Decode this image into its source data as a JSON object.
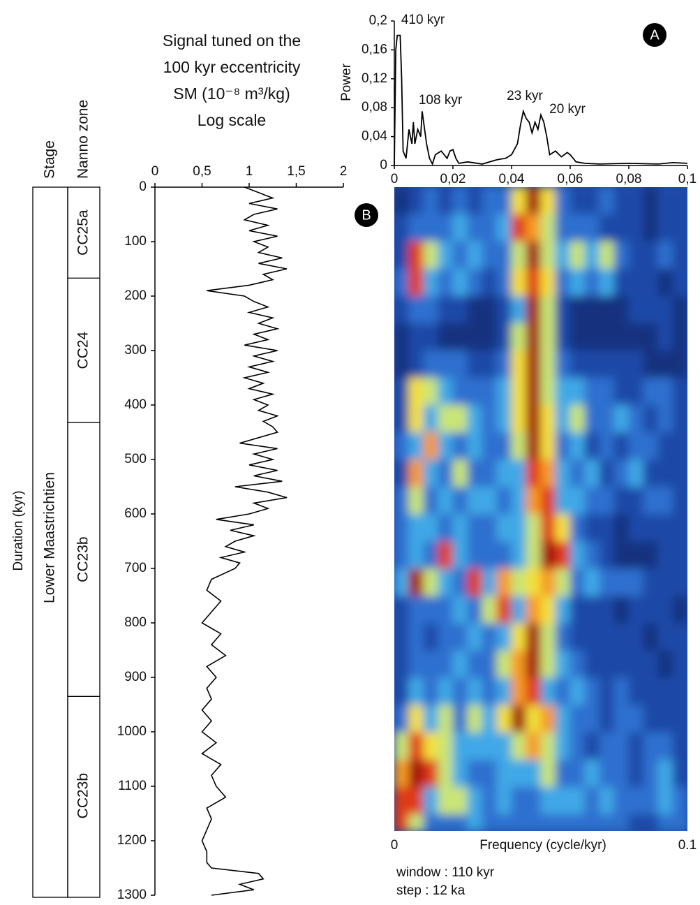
{
  "stratigraphy": {
    "stage_header": "Stage",
    "zone_header": "Nanno zone",
    "stage": "Lower Maastrichtien",
    "zones": [
      {
        "name": "CC25a",
        "top": 0,
        "base": 167
      },
      {
        "name": "CC24",
        "top": 167,
        "base": 432
      },
      {
        "name": "CC23b",
        "top": 432,
        "base": 935
      },
      {
        "name": "CC23b",
        "top": 935,
        "base": 1300
      }
    ]
  },
  "chart_data": [
    {
      "type": "profile",
      "title_lines": [
        "Signal tuned on the",
        "100 kyr eccentricity",
        "SM (10⁻⁸ m³/kg)",
        "Log scale"
      ],
      "y_label": "Duration (kyr)",
      "color": "#000000",
      "xlim": [
        0,
        2
      ],
      "xticks": [
        0,
        {
          "value": 0.5,
          "label": "0,5"
        },
        1,
        {
          "value": 1.5,
          "label": "1,5"
        },
        2
      ],
      "ylim": [
        0,
        1300
      ],
      "yticks": [
        0,
        100,
        200,
        300,
        400,
        500,
        600,
        700,
        800,
        900,
        1000,
        1100,
        1200,
        1300
      ],
      "y": [
        0,
        10,
        20,
        30,
        40,
        50,
        60,
        70,
        80,
        90,
        100,
        110,
        120,
        130,
        140,
        150,
        160,
        170,
        180,
        190,
        200,
        210,
        220,
        230,
        240,
        250,
        260,
        270,
        280,
        290,
        300,
        310,
        320,
        330,
        340,
        350,
        360,
        370,
        380,
        390,
        400,
        410,
        420,
        430,
        440,
        450,
        460,
        470,
        480,
        490,
        500,
        510,
        520,
        530,
        540,
        550,
        560,
        570,
        580,
        590,
        600,
        610,
        620,
        630,
        640,
        650,
        660,
        670,
        680,
        690,
        700,
        720,
        740,
        760,
        780,
        800,
        820,
        840,
        860,
        880,
        900,
        920,
        940,
        960,
        980,
        1000,
        1020,
        1040,
        1060,
        1080,
        1100,
        1120,
        1140,
        1160,
        1180,
        1200,
        1220,
        1240,
        1250,
        1260,
        1270,
        1280,
        1290,
        1300
      ],
      "values": [
        0.95,
        1.1,
        1.25,
        1.0,
        1.3,
        1.05,
        0.95,
        1.2,
        1.0,
        1.3,
        1.05,
        1.2,
        1.1,
        1.35,
        1.1,
        1.4,
        1.15,
        1.25,
        1.0,
        0.55,
        0.95,
        1.05,
        1.2,
        1.0,
        1.25,
        1.1,
        1.3,
        1.05,
        1.2,
        0.95,
        1.3,
        1.05,
        1.25,
        1.0,
        1.2,
        0.95,
        1.15,
        1.0,
        1.25,
        1.05,
        1.2,
        1.1,
        1.3,
        1.15,
        1.25,
        1.3,
        1.1,
        0.9,
        1.3,
        1.05,
        1.25,
        1.0,
        1.3,
        1.05,
        1.35,
        0.85,
        1.2,
        1.4,
        1.05,
        1.2,
        1.0,
        0.65,
        1.05,
        0.8,
        1.05,
        0.85,
        0.75,
        0.95,
        0.7,
        0.9,
        0.85,
        0.6,
        0.55,
        0.7,
        0.6,
        0.5,
        0.7,
        0.6,
        0.75,
        0.55,
        0.65,
        0.55,
        0.6,
        0.5,
        0.6,
        0.5,
        0.65,
        0.5,
        0.7,
        0.6,
        0.65,
        0.75,
        0.55,
        0.6,
        0.55,
        0.5,
        0.55,
        0.55,
        0.6,
        1.1,
        1.15,
        0.9,
        1.05,
        0.6
      ]
    },
    {
      "type": "line",
      "panel": "A",
      "y_label": "Power",
      "annotations": [
        "410 kyr",
        "108 kyr",
        "23 kyr",
        "20 kyr"
      ],
      "color": "#000000",
      "xlim": [
        0,
        0.1
      ],
      "xticks": [
        0,
        {
          "value": 0.02,
          "label": "0,02"
        },
        {
          "value": 0.04,
          "label": "0,04"
        },
        {
          "value": 0.06,
          "label": "0,06"
        },
        {
          "value": 0.08,
          "label": "0,08"
        },
        {
          "value": 0.1,
          "label": "0,1"
        }
      ],
      "ylim": [
        0,
        0.2
      ],
      "yticks": [
        0,
        {
          "value": 0.04,
          "label": "0,04"
        },
        {
          "value": 0.08,
          "label": "0,08"
        },
        {
          "value": 0.12,
          "label": "0,12"
        },
        {
          "value": 0.16,
          "label": "0,16"
        },
        {
          "value": 0.2,
          "label": "0,2"
        }
      ],
      "x": [
        0,
        0.0005,
        0.001,
        0.002,
        0.0025,
        0.003,
        0.004,
        0.005,
        0.006,
        0.0065,
        0.007,
        0.008,
        0.009,
        0.0095,
        0.01,
        0.011,
        0.012,
        0.013,
        0.014,
        0.016,
        0.018,
        0.019,
        0.02,
        0.021,
        0.022,
        0.025,
        0.03,
        0.035,
        0.038,
        0.04,
        0.042,
        0.043,
        0.044,
        0.045,
        0.046,
        0.047,
        0.048,
        0.049,
        0.05,
        0.051,
        0.052,
        0.053,
        0.055,
        0.057,
        0.059,
        0.06,
        0.062,
        0.065,
        0.07,
        0.08,
        0.09,
        0.095,
        0.1
      ],
      "values": [
        0,
        0.16,
        0.18,
        0.18,
        0.12,
        0.02,
        0.01,
        0.05,
        0.03,
        0.06,
        0.03,
        0.05,
        0.04,
        0.075,
        0.06,
        0.03,
        0.01,
        0.002,
        0.015,
        0.02,
        0.01,
        0.02,
        0.022,
        0.01,
        0.003,
        0.005,
        0.002,
        0.008,
        0.01,
        0.015,
        0.03,
        0.055,
        0.075,
        0.065,
        0.06,
        0.045,
        0.06,
        0.05,
        0.07,
        0.06,
        0.04,
        0.015,
        0.02,
        0.012,
        0.018,
        0.015,
        0.005,
        0.003,
        0.002,
        0.003,
        0.002,
        0.004,
        0.003
      ]
    },
    {
      "type": "heatmap",
      "panel": "B",
      "x_label": "Frequency (cycle/kyr)",
      "notes": [
        "window : 110 kyr",
        "step : 12 ka"
      ],
      "xlim": [
        0,
        0.1
      ],
      "xticks": [
        0,
        0.1
      ],
      "ylim": [
        0,
        1180
      ],
      "colormap": [
        "#17307f",
        "#1f4aa8",
        "#2f6fcf",
        "#3fa8e6",
        "#6fd6ee",
        "#c9e576",
        "#f3df3a",
        "#f59a22",
        "#df3a18",
        "#a3100e"
      ],
      "x": [
        0.0025,
        0.0075,
        0.0125,
        0.0175,
        0.0225,
        0.0275,
        0.0325,
        0.0375,
        0.0425,
        0.0475,
        0.0525,
        0.0575,
        0.0625,
        0.0675,
        0.0725,
        0.0775,
        0.0825,
        0.0875,
        0.0925,
        0.0975
      ],
      "y": [
        0,
        50,
        100,
        150,
        200,
        250,
        300,
        350,
        400,
        450,
        500,
        550,
        600,
        650,
        700,
        750,
        800,
        850,
        900,
        950,
        1000,
        1050,
        1100,
        1150
      ],
      "z": [
        [
          1,
          2,
          3,
          2,
          3,
          2,
          3,
          3,
          6,
          9,
          6,
          3,
          2,
          2,
          3,
          2,
          2,
          1,
          2,
          2
        ],
        [
          2,
          3,
          3,
          3,
          4,
          3,
          3,
          4,
          8,
          7,
          5,
          3,
          3,
          3,
          2,
          2,
          2,
          1,
          2,
          2
        ],
        [
          2,
          8,
          5,
          4,
          3,
          4,
          3,
          3,
          5,
          9,
          5,
          4,
          5,
          4,
          5,
          3,
          2,
          2,
          3,
          2
        ],
        [
          3,
          8,
          4,
          3,
          4,
          3,
          2,
          3,
          6,
          8,
          6,
          3,
          4,
          3,
          4,
          2,
          2,
          2,
          1,
          2
        ],
        [
          2,
          3,
          3,
          2,
          2,
          1,
          1,
          2,
          4,
          9,
          5,
          2,
          1,
          1,
          1,
          1,
          2,
          2,
          2,
          1
        ],
        [
          1,
          2,
          2,
          1,
          1,
          1,
          1,
          2,
          5,
          9,
          5,
          2,
          1,
          1,
          1,
          1,
          1,
          1,
          2,
          1
        ],
        [
          1,
          2,
          3,
          3,
          3,
          2,
          2,
          3,
          6,
          9,
          5,
          3,
          2,
          2,
          2,
          2,
          2,
          1,
          1,
          1
        ],
        [
          2,
          6,
          5,
          4,
          3,
          3,
          3,
          4,
          6,
          9,
          5,
          4,
          4,
          3,
          3,
          2,
          2,
          3,
          3,
          2
        ],
        [
          2,
          6,
          4,
          5,
          5,
          4,
          3,
          4,
          6,
          9,
          6,
          4,
          5,
          3,
          3,
          4,
          3,
          2,
          3,
          2
        ],
        [
          3,
          4,
          7,
          4,
          3,
          4,
          3,
          3,
          5,
          9,
          6,
          3,
          4,
          2,
          3,
          2,
          3,
          3,
          2,
          2
        ],
        [
          2,
          7,
          4,
          3,
          5,
          3,
          3,
          4,
          4,
          8,
          7,
          4,
          3,
          4,
          2,
          3,
          4,
          2,
          2,
          2
        ],
        [
          3,
          5,
          3,
          4,
          3,
          4,
          4,
          3,
          4,
          7,
          8,
          4,
          4,
          3,
          3,
          2,
          2,
          3,
          3,
          2
        ],
        [
          3,
          4,
          4,
          3,
          4,
          3,
          3,
          4,
          4,
          5,
          8,
          6,
          3,
          2,
          2,
          1,
          2,
          2,
          2,
          2
        ],
        [
          3,
          4,
          3,
          8,
          4,
          3,
          3,
          3,
          4,
          5,
          9,
          8,
          4,
          3,
          2,
          1,
          1,
          1,
          2,
          2
        ],
        [
          4,
          9,
          5,
          4,
          3,
          8,
          4,
          7,
          5,
          6,
          7,
          5,
          3,
          4,
          3,
          3,
          3,
          2,
          2,
          2
        ],
        [
          2,
          3,
          3,
          3,
          4,
          3,
          5,
          8,
          4,
          7,
          6,
          4,
          2,
          2,
          2,
          1,
          2,
          2,
          2,
          1
        ],
        [
          2,
          3,
          2,
          3,
          3,
          4,
          3,
          4,
          6,
          9,
          5,
          3,
          2,
          2,
          2,
          2,
          2,
          1,
          2,
          2
        ],
        [
          2,
          3,
          3,
          3,
          4,
          3,
          3,
          5,
          7,
          9,
          5,
          4,
          3,
          2,
          2,
          2,
          2,
          2,
          1,
          2
        ],
        [
          2,
          4,
          3,
          4,
          3,
          4,
          3,
          4,
          7,
          8,
          4,
          3,
          4,
          3,
          2,
          3,
          2,
          2,
          2,
          2
        ],
        [
          3,
          6,
          4,
          5,
          3,
          5,
          4,
          6,
          9,
          6,
          7,
          4,
          3,
          3,
          2,
          3,
          3,
          2,
          2,
          2
        ],
        [
          5,
          8,
          6,
          5,
          4,
          4,
          4,
          4,
          5,
          7,
          5,
          4,
          3,
          2,
          3,
          3,
          2,
          3,
          3,
          2
        ],
        [
          7,
          9,
          8,
          5,
          4,
          3,
          3,
          4,
          4,
          4,
          5,
          3,
          3,
          4,
          3,
          3,
          2,
          3,
          4,
          2
        ],
        [
          8,
          8,
          4,
          5,
          5,
          4,
          3,
          4,
          3,
          3,
          4,
          4,
          4,
          3,
          4,
          3,
          3,
          3,
          4,
          3
        ],
        [
          8,
          5,
          3,
          3,
          3,
          4,
          3,
          3,
          3,
          3,
          3,
          3,
          3,
          3,
          3,
          3,
          2,
          2,
          3,
          3
        ]
      ]
    }
  ]
}
